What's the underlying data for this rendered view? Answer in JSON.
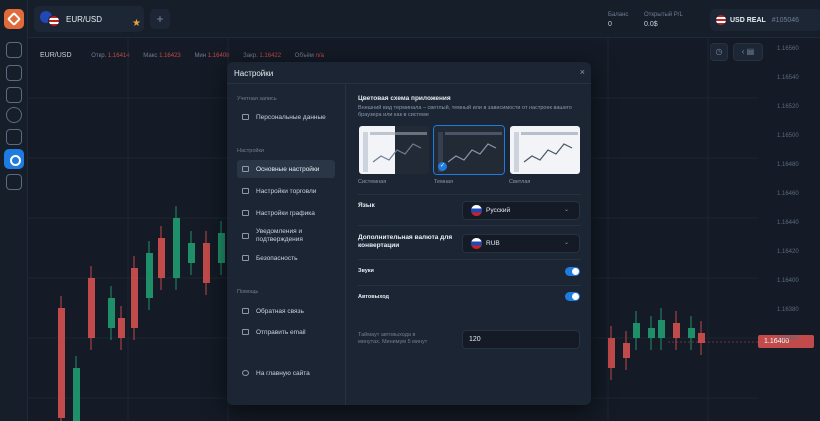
{
  "rail": {
    "icons": [
      "chart-icon",
      "transactions-icon",
      "portfolio-icon",
      "history-icon",
      "book-icon",
      "settings-icon",
      "gift-icon"
    ]
  },
  "topbar": {
    "pair": "EUR/USD",
    "balance_label": "Баланс",
    "balance_value": "0",
    "open_pl_label": "Открытый P/L",
    "open_pl_value": "0.0$",
    "account_currency": "USD REAL",
    "account_id": "#105046"
  },
  "chart": {
    "symbol": "EUR/USD",
    "open_label": "Откр.",
    "open_value": "1.16414",
    "max_label": "Макс",
    "max_value": "1.16423",
    "min_label": "Мин",
    "min_value": "1.16408",
    "close_label": "Закр.",
    "close_value": "1.16422",
    "volume_label": "Объём",
    "volume_value": "n/a",
    "price_tag": "1.16400",
    "axis_ticks": [
      "1.16560",
      "1.16540",
      "1.16520",
      "1.16500",
      "1.16480",
      "1.16460",
      "1.16440",
      "1.16420",
      "1.16400",
      "1.16380",
      "1.16360"
    ]
  },
  "modal": {
    "title": "Настройки",
    "close": "×",
    "sections": {
      "account": "Учетная запись",
      "settings": "Настройки",
      "help": "Помощь"
    },
    "items": {
      "personal": "Персональные данные",
      "general": "Основные настройки",
      "trading": "Настройки торговли",
      "chart": "Настройки графика",
      "notifications": "Уведомления и подтверждения",
      "security": "Безопасность",
      "feedback": "Обратная связь",
      "email": "Отправить email",
      "home": "На главную сайта"
    },
    "content": {
      "theme_title": "Цветовая схема приложения",
      "theme_desc": "Внешний вид терминала – светлый, темный или в зависимости от настроек вашего браузера или как в системе",
      "themes": [
        "Системная",
        "Темная",
        "Светлая"
      ],
      "selected_theme": "Темная",
      "language_label": "Язык",
      "language_value": "Русский",
      "currency_label": "Дополнительная валюта для конвертации",
      "currency_value": "RUB",
      "sounds_label": "Звуки",
      "sounds_on": true,
      "autologout_label": "Автовыход",
      "autologout_on": true,
      "timeout_hint": "Таймаут автовыхода в минутах. Минимум 5 минут",
      "timeout_value": "120"
    }
  }
}
